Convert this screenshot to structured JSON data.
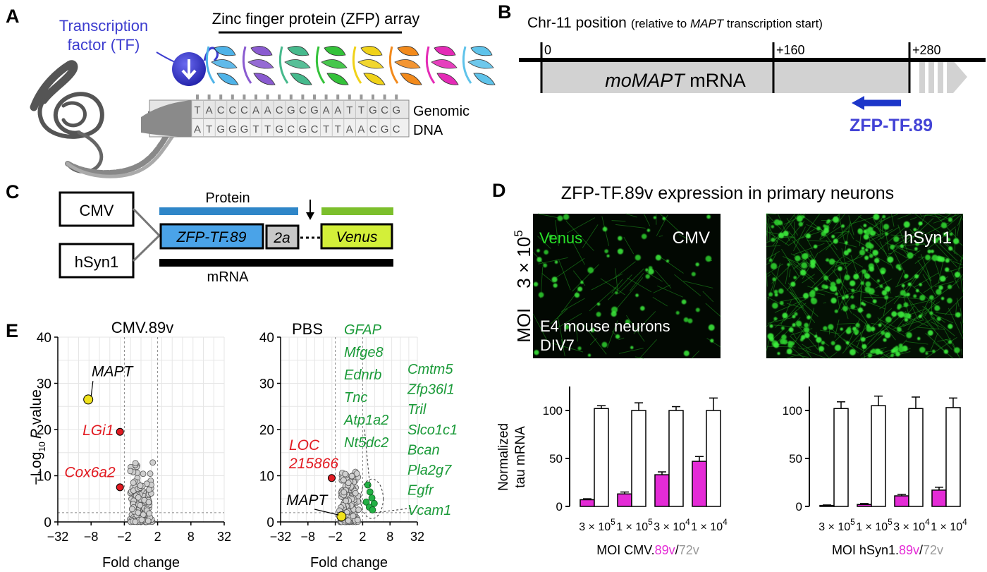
{
  "panel_a": {
    "letter": "A",
    "tf_label_1": "Transcription",
    "tf_label_2": "factor (TF)",
    "zfp_label": "Zinc finger protein (ZFP) array",
    "seq_top": [
      "T",
      "A",
      "C",
      "C",
      "C",
      "A",
      "A",
      "C",
      "G",
      "C",
      "G",
      "A",
      "A",
      "T",
      "T",
      "G",
      "C",
      "G"
    ],
    "seq_bottom": [
      "A",
      "T",
      "G",
      "G",
      "G",
      "T",
      "T",
      "G",
      "C",
      "G",
      "C",
      "T",
      "T",
      "A",
      "A",
      "C",
      "G",
      "C"
    ],
    "genomic_1": "Genomic",
    "genomic_2": "DNA",
    "finger_colors": [
      "#4fb3e8",
      "#8a5bd0",
      "#46b98c",
      "#34c23a",
      "#f0d219",
      "#f28a1c",
      "#e42bb6",
      "#5fc3ea"
    ],
    "tf_color": "#3c3ccf"
  },
  "panel_b": {
    "letter": "B",
    "title_main": "Chr-11 position",
    "title_paren_1": "(relative to ",
    "title_paren_gene": "MAPT",
    "title_paren_2": " transcription start)",
    "tick_0": "0",
    "tick_160": "+160",
    "tick_280": "+280",
    "mrna_gene": "moMAPT",
    "mrna_word": " mRNA",
    "zfp_binding_label": "ZFP-TF.89",
    "arrow_color": "#1c36c9"
  },
  "panel_c": {
    "letter": "C",
    "promoter_1": "CMV",
    "promoter_2": "hSyn1",
    "protein_label": "Protein",
    "zfp_box": "ZFP-TF.89",
    "box_2a": "2a",
    "venus_box": "Venus",
    "mrna_label": "mRNA",
    "zfp_color": "#4aa3e8",
    "venus_color": "#d3ef39"
  },
  "panel_d": {
    "letter": "D",
    "title": "ZFP-TF.89v expression in primary neurons",
    "moi_label": "MOI",
    "moi_value": "3 × 10",
    "moi_exp": "5",
    "img1_channel": "Venus",
    "img1_promoter": "CMV",
    "img1_caption_1": "E4 mouse neurons",
    "img1_caption_2": "DIV7",
    "img2_promoter": "hSyn1",
    "ylabel_1": "Normalized",
    "ylabel_2": "tau mRNA",
    "chart_data": [
      {
        "type": "bar",
        "categories": [
          "3 × 10^5",
          "1 × 10^5",
          "3 × 10^4",
          "1 × 10^4"
        ],
        "series": [
          {
            "name": "89v",
            "color": "#e42bd6",
            "values": [
              7,
              13,
              33,
              47
            ],
            "errors": [
              1,
              2,
              3,
              5
            ]
          },
          {
            "name": "72v",
            "color": "#ffffff",
            "values": [
              102,
              100,
              100,
              100
            ],
            "errors": [
              3,
              8,
              4,
              13
            ]
          }
        ],
        "ylim": [
          0,
          125
        ],
        "yticks": [
          0,
          50,
          100
        ],
        "xlabel_prefix": "MOI CMV.",
        "xlabel_s1": "89v",
        "xlabel_sep": "/",
        "xlabel_s2": "72v"
      },
      {
        "type": "bar",
        "categories": [
          "3 × 10^5",
          "1 × 10^5",
          "3 × 10^4",
          "1 × 10^4"
        ],
        "series": [
          {
            "name": "89v",
            "color": "#e42bd6",
            "values": [
              1,
              2,
              11,
              17
            ],
            "errors": [
              0.5,
              1,
              1.5,
              3
            ]
          },
          {
            "name": "72v",
            "color": "#ffffff",
            "values": [
              102,
              105,
              102,
              103
            ],
            "errors": [
              7,
              10,
              12,
              10
            ]
          }
        ],
        "ylim": [
          0,
          125
        ],
        "yticks": [
          0,
          50,
          100
        ],
        "xlabel_prefix": "MOI hSyn1.",
        "xlabel_s1": "89v",
        "xlabel_sep": "/",
        "xlabel_s2": "72v"
      }
    ],
    "tick_base": [
      "3 × 10",
      "1 × 10",
      "3 × 10",
      "1 × 10"
    ],
    "tick_exp": [
      "5",
      "5",
      "4",
      "4"
    ]
  },
  "panel_e": {
    "letter": "E",
    "xlabel": "Fold change",
    "ylabel_pre": "−Log",
    "ylabel_sub": "10",
    "ylabel_p": "P",
    "ylabel_post": " value",
    "xticks": [
      "−32",
      "−8",
      "−2",
      "2",
      "8",
      "32"
    ],
    "yticks": [
      "0",
      "10",
      "20",
      "30",
      "40"
    ],
    "chart_data": [
      {
        "type": "scatter",
        "title": "CMV.89v",
        "xlim": [
          -32,
          32
        ],
        "ylim": [
          0,
          40
        ],
        "highlight": [
          {
            "label": "MAPT",
            "x": -9,
            "y": 26.5,
            "color": "#f0e21c"
          },
          {
            "label": "LGi1",
            "x": -2.4,
            "y": 19.5,
            "color": "#e21b22"
          },
          {
            "label": "Cox6a2",
            "x": -2.4,
            "y": 7.5,
            "color": "#e21b22"
          }
        ]
      },
      {
        "type": "scatter",
        "title": "PBS",
        "xlim": [
          -32,
          32
        ],
        "ylim": [
          0,
          40
        ],
        "highlight": [
          {
            "label": "LOC 215866",
            "x": -2.4,
            "y": 9.5,
            "color": "#e21b22"
          },
          {
            "label": "MAPT",
            "x": -1.1,
            "y": 1.2,
            "color": "#f0e21c"
          }
        ],
        "green_genes_col1": [
          "GFAP",
          "Mfge8",
          "Ednrb",
          "Tnc",
          "Atp1a2",
          "Nt5dc2"
        ],
        "green_genes_col2": [
          "Cmtm5",
          "Zfp36l1",
          "Tril",
          "Slco1c1",
          "Bcan",
          "Pla2g7",
          "Egfr",
          "Vcam1"
        ]
      }
    ],
    "red_label_1": "LOC",
    "red_label_2": "215866",
    "red_color": "#e21b22",
    "green_color": "#1a9a38"
  }
}
